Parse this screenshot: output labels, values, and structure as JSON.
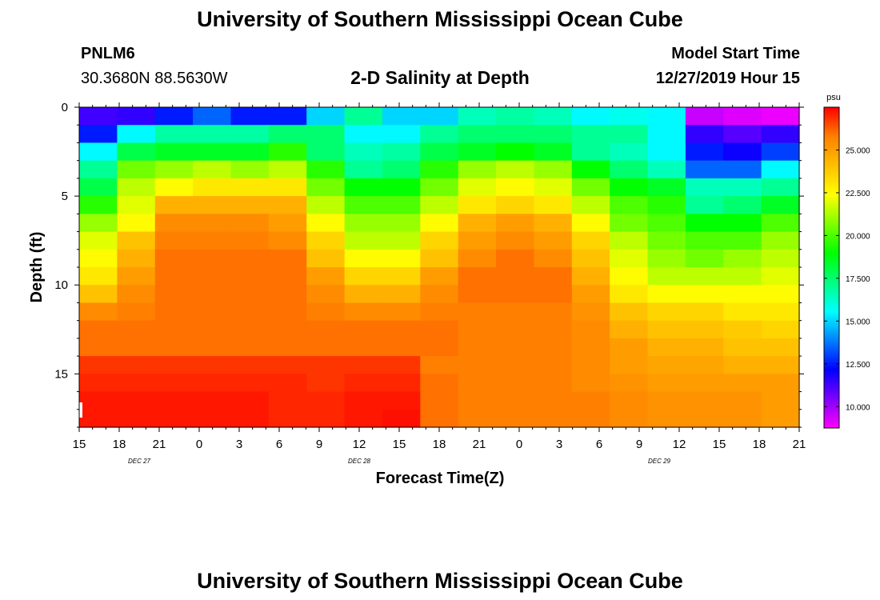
{
  "header": {
    "title": "University of Southern Mississippi Ocean Cube",
    "station": "PNLM6",
    "coords": "30.3680N 88.5630W",
    "plot_title": "2-D Salinity at Depth",
    "model_label": "Model Start Time",
    "model_time": "12/27/2019 Hour 15"
  },
  "footer": {
    "title": "University of Southern Mississippi Ocean Cube"
  },
  "colors": {
    "background": "#ffffff",
    "axis": "#000000",
    "scale": [
      "#ff00ff",
      "#7f00ff",
      "#0000ff",
      "#0080ff",
      "#00ffff",
      "#00ff80",
      "#00ff00",
      "#80ff00",
      "#ffff00",
      "#ffbf00",
      "#ff8000",
      "#ff0000"
    ]
  },
  "chart_data": {
    "type": "heatmap",
    "title": "2-D Salinity at Depth",
    "xlabel": "Forecast Time(Z)",
    "ylabel": "Depth (ft)",
    "units": "psu",
    "x_ticks": [
      "15",
      "18",
      "21",
      "0",
      "3",
      "6",
      "9",
      "12",
      "15",
      "18",
      "21",
      "0",
      "3",
      "6",
      "9",
      "12",
      "15",
      "18",
      "21"
    ],
    "date_labels": [
      {
        "text": "DEC 27",
        "tick_index": 1.5
      },
      {
        "text": "DEC 28",
        "tick_index": 7
      },
      {
        "text": "DEC 29",
        "tick_index": 14.5
      }
    ],
    "y_ticks": [
      0,
      5,
      10,
      15
    ],
    "ylim": [
      0,
      18
    ],
    "color_range": [
      8.75,
      27.5
    ],
    "colorbar_ticks": [
      "10.000",
      "12.500",
      "15.000",
      "17.500",
      "20.000",
      "22.500",
      "25.000"
    ],
    "colorbar_tick_values": [
      10,
      12.5,
      15,
      17.5,
      20,
      22.5,
      25
    ],
    "depths": [
      0,
      1,
      2,
      3,
      4,
      5,
      6,
      7,
      8,
      9,
      10,
      11,
      12,
      13,
      14,
      15,
      16,
      17
    ],
    "hours": [
      0,
      3,
      6,
      9,
      12,
      15,
      18,
      21,
      24,
      27,
      30,
      33,
      36,
      39,
      42,
      45,
      48,
      51,
      54
    ],
    "values": [
      [
        11.3,
        11.5,
        12.5,
        13.5,
        12.5,
        12.5,
        15.0,
        17.0,
        15.0,
        15.0,
        16.5,
        16.8,
        16.5,
        15.5,
        15.8,
        15.5,
        9.5,
        9.2,
        9.0
      ],
      [
        12.5,
        15.5,
        16.8,
        16.8,
        16.8,
        17.5,
        17.5,
        15.5,
        15.5,
        17.0,
        17.5,
        17.5,
        17.5,
        17.0,
        17.0,
        15.5,
        11.5,
        11.0,
        11.5
      ],
      [
        15.5,
        18.0,
        18.5,
        18.5,
        18.5,
        19.5,
        17.5,
        16.5,
        16.8,
        18.0,
        18.5,
        19.0,
        18.5,
        17.0,
        16.5,
        15.5,
        12.5,
        12.0,
        13.0
      ],
      [
        17.0,
        20.5,
        21.0,
        21.5,
        21.0,
        21.5,
        19.5,
        17.0,
        17.5,
        19.5,
        21.0,
        21.5,
        21.0,
        19.0,
        17.5,
        16.5,
        13.5,
        13.5,
        15.5
      ],
      [
        18.0,
        21.5,
        22.5,
        23.0,
        23.0,
        23.0,
        20.5,
        19.0,
        19.0,
        20.5,
        22.0,
        22.5,
        22.0,
        20.5,
        19.0,
        18.5,
        16.5,
        16.5,
        17.0
      ],
      [
        19.5,
        22.0,
        24.5,
        24.5,
        24.5,
        24.5,
        21.5,
        20.0,
        20.0,
        21.5,
        23.0,
        23.5,
        23.0,
        21.5,
        20.0,
        19.5,
        17.0,
        17.5,
        18.5
      ],
      [
        21.0,
        22.5,
        25.5,
        25.5,
        25.5,
        25.0,
        22.5,
        21.0,
        21.0,
        22.5,
        24.5,
        25.0,
        24.5,
        22.5,
        20.5,
        20.0,
        19.0,
        19.0,
        20.0
      ],
      [
        22.0,
        24.0,
        25.8,
        25.8,
        25.8,
        25.5,
        23.5,
        21.5,
        21.5,
        23.5,
        25.0,
        25.5,
        25.0,
        23.5,
        21.5,
        20.5,
        20.0,
        20.0,
        21.0
      ],
      [
        22.5,
        24.5,
        26.0,
        26.0,
        26.0,
        26.0,
        24.0,
        22.5,
        22.5,
        24.0,
        25.5,
        26.0,
        25.5,
        24.0,
        22.0,
        21.0,
        20.5,
        21.0,
        21.5
      ],
      [
        23.0,
        25.0,
        26.0,
        26.0,
        26.0,
        26.0,
        25.0,
        23.5,
        23.5,
        25.0,
        26.0,
        26.0,
        26.0,
        24.5,
        22.5,
        21.5,
        21.5,
        21.5,
        22.0
      ],
      [
        24.0,
        25.5,
        26.0,
        26.0,
        26.0,
        26.0,
        25.5,
        24.5,
        24.5,
        25.5,
        26.0,
        26.0,
        26.0,
        25.0,
        23.0,
        22.5,
        22.5,
        22.5,
        22.5
      ],
      [
        25.5,
        25.8,
        26.0,
        26.0,
        26.0,
        26.0,
        25.8,
        25.5,
        25.5,
        25.8,
        25.8,
        25.8,
        25.8,
        25.3,
        24.0,
        23.5,
        23.5,
        23.0,
        23.0
      ],
      [
        26.0,
        26.0,
        26.0,
        26.0,
        26.0,
        26.0,
        26.0,
        26.0,
        26.0,
        26.0,
        25.8,
        25.8,
        25.8,
        25.5,
        24.5,
        24.0,
        24.0,
        23.8,
        23.5
      ],
      [
        26.0,
        26.0,
        26.0,
        26.0,
        26.0,
        26.0,
        26.0,
        26.0,
        26.0,
        26.0,
        25.8,
        25.8,
        25.8,
        25.5,
        25.0,
        24.5,
        24.5,
        24.0,
        24.0
      ],
      [
        26.8,
        26.8,
        26.8,
        26.8,
        26.8,
        26.8,
        26.8,
        26.8,
        26.8,
        25.8,
        25.8,
        25.8,
        25.8,
        25.5,
        25.0,
        24.8,
        24.8,
        24.5,
        24.5
      ],
      [
        27.0,
        27.0,
        27.0,
        27.0,
        27.0,
        27.0,
        26.8,
        27.0,
        27.0,
        26.0,
        25.8,
        25.8,
        25.8,
        25.5,
        25.3,
        25.0,
        25.0,
        25.0,
        25.0
      ],
      [
        27.2,
        27.2,
        27.2,
        27.2,
        27.2,
        27.0,
        27.0,
        27.2,
        27.2,
        26.0,
        25.8,
        25.8,
        25.8,
        25.8,
        25.5,
        25.3,
        25.3,
        25.3,
        25.0
      ],
      [
        27.2,
        27.2,
        27.2,
        27.2,
        27.2,
        27.0,
        27.0,
        27.2,
        27.3,
        26.0,
        25.8,
        25.8,
        25.8,
        25.8,
        25.5,
        25.3,
        25.3,
        25.3,
        25.0
      ]
    ]
  }
}
